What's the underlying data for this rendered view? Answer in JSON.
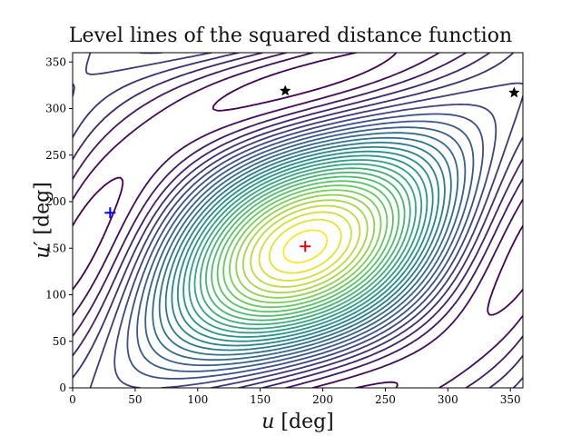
{
  "chart_data": {
    "type": "contour",
    "title": "Level lines of the squared distance function",
    "xlabel": {
      "symbol": "u",
      "unit": "[deg]"
    },
    "ylabel": {
      "symbol": "u′",
      "unit": "[deg]"
    },
    "xlim": [
      0,
      360
    ],
    "ylim": [
      0,
      360
    ],
    "xticks": [
      "0",
      "50",
      "100",
      "150",
      "200",
      "250",
      "300",
      "350"
    ],
    "yticks": [
      "0",
      "50",
      "100",
      "150",
      "200",
      "250",
      "300",
      "350"
    ],
    "colormap": [
      "#440154",
      "#3b528b",
      "#21918c",
      "#5ec962",
      "#fde725"
    ],
    "grid": false,
    "markers": [
      {
        "name": "maximum",
        "symbol": "plus",
        "color": "#e8000b",
        "x": 186,
        "y": 152
      },
      {
        "name": "minimum",
        "symbol": "plus",
        "color": "#0000ff",
        "x": 30,
        "y": 188
      },
      {
        "name": "saddle-1",
        "symbol": "star",
        "color": "#000000",
        "x": 170,
        "y": 319
      },
      {
        "name": "saddle-2",
        "symbol": "star",
        "color": "#000000",
        "x": 353,
        "y": 317
      }
    ]
  }
}
